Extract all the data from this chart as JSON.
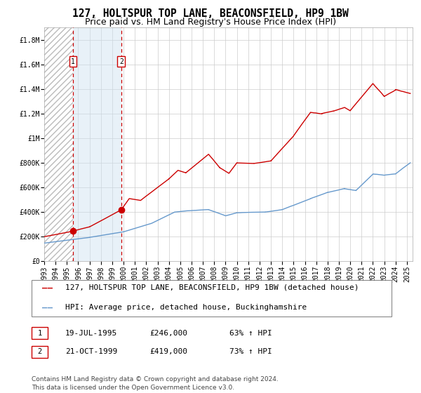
{
  "title": "127, HOLTSPUR TOP LANE, BEACONSFIELD, HP9 1BW",
  "subtitle": "Price paid vs. HM Land Registry's House Price Index (HPI)",
  "ylim": [
    0,
    1900000
  ],
  "xlim_start": 1993.0,
  "xlim_end": 2025.5,
  "yticks": [
    0,
    200000,
    400000,
    600000,
    800000,
    1000000,
    1200000,
    1400000,
    1600000,
    1800000
  ],
  "ytick_labels": [
    "£0",
    "£200K",
    "£400K",
    "£600K",
    "£800K",
    "£1M",
    "£1.2M",
    "£1.4M",
    "£1.6M",
    "£1.8M"
  ],
  "xtick_years": [
    1993,
    1994,
    1995,
    1996,
    1997,
    1998,
    1999,
    2000,
    2001,
    2002,
    2003,
    2004,
    2005,
    2006,
    2007,
    2008,
    2009,
    2010,
    2011,
    2012,
    2013,
    2014,
    2015,
    2016,
    2017,
    2018,
    2019,
    2020,
    2021,
    2022,
    2023,
    2024,
    2025
  ],
  "red_line_color": "#cc0000",
  "blue_line_color": "#6699cc",
  "grid_color": "#cccccc",
  "sale1_date_x": 1995.54,
  "sale1_price": 246000,
  "sale2_date_x": 1999.8,
  "sale2_price": 419000,
  "sale1_date_str": "19-JUL-1995",
  "sale1_price_str": "£246,000",
  "sale1_hpi_str": "63% ↑ HPI",
  "sale2_date_str": "21-OCT-1999",
  "sale2_price_str": "£419,000",
  "sale2_hpi_str": "73% ↑ HPI",
  "legend_line1": "127, HOLTSPUR TOP LANE, BEACONSFIELD, HP9 1BW (detached house)",
  "legend_line2": "HPI: Average price, detached house, Buckinghamshire",
  "footnote": "Contains HM Land Registry data © Crown copyright and database right 2024.\nThis data is licensed under the Open Government Licence v3.0.",
  "title_fontsize": 10.5,
  "subtitle_fontsize": 9,
  "tick_fontsize": 7,
  "legend_fontsize": 8,
  "footnote_fontsize": 6.5,
  "annot_fontsize": 8
}
